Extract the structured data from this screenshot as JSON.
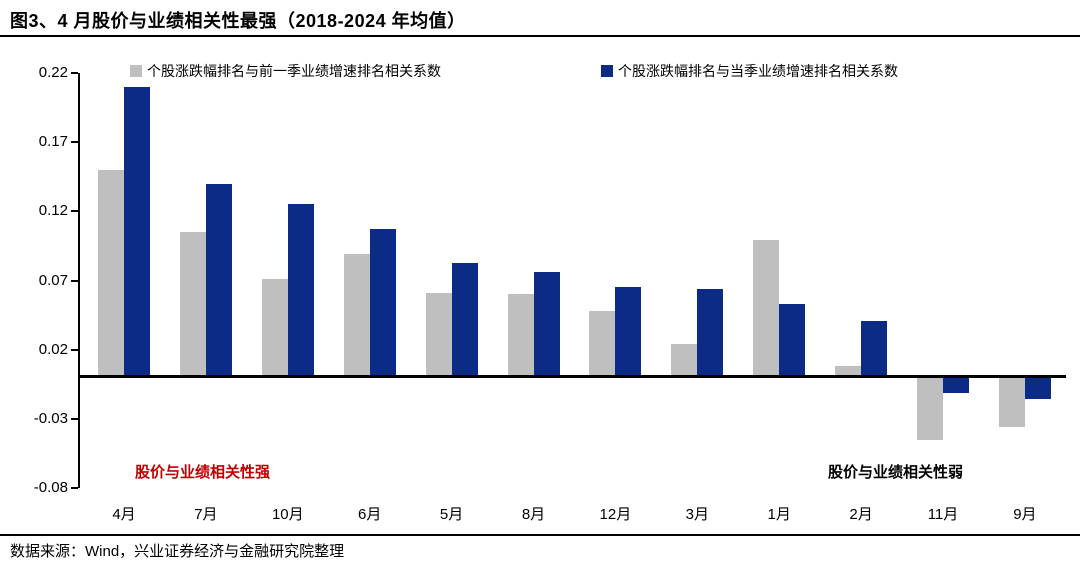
{
  "title": "图3、4 月股价与业绩相关性最强（2018-2024 年均值）",
  "legend": [
    {
      "label": "个股涨跌幅排名与前一季业绩增速排名相关系数",
      "color": "#BFBFBF"
    },
    {
      "label": "个股涨跌幅排名与当季业绩增速排名相关系数",
      "color": "#0C2B87"
    }
  ],
  "annotations": {
    "strong": {
      "text": "股价与业绩相关性强",
      "color": "#C00000"
    },
    "weak": {
      "text": "股价与业绩相关性弱",
      "color": "#000000"
    }
  },
  "footer": "数据来源：Wind，兴业证券经济与金融研究院整理",
  "chart_data": {
    "type": "bar",
    "categories": [
      "4月",
      "7月",
      "10月",
      "6月",
      "5月",
      "8月",
      "12月",
      "3月",
      "1月",
      "2月",
      "11月",
      "9月"
    ],
    "series": [
      {
        "name": "个股涨跌幅排名与前一季业绩增速排名相关系数",
        "color": "#BFBFBF",
        "values": [
          0.15,
          0.105,
          0.071,
          0.089,
          0.061,
          0.06,
          0.048,
          0.024,
          0.099,
          0.008,
          -0.045,
          -0.036
        ]
      },
      {
        "name": "个股涨跌幅排名与当季业绩增速排名相关系数",
        "color": "#0C2B87",
        "values": [
          0.21,
          0.14,
          0.125,
          0.107,
          0.083,
          0.076,
          0.065,
          0.064,
          0.053,
          0.041,
          -0.011,
          -0.016
        ]
      }
    ],
    "title": "图3、4 月股价与业绩相关性最强（2018-2024 年均值）",
    "xlabel": "",
    "ylabel": "",
    "ylim": [
      -0.08,
      0.22
    ],
    "yticks": [
      0.22,
      0.17,
      0.12,
      0.07,
      0.02,
      -0.03,
      -0.08
    ],
    "grid": false,
    "legend_position": "top"
  }
}
